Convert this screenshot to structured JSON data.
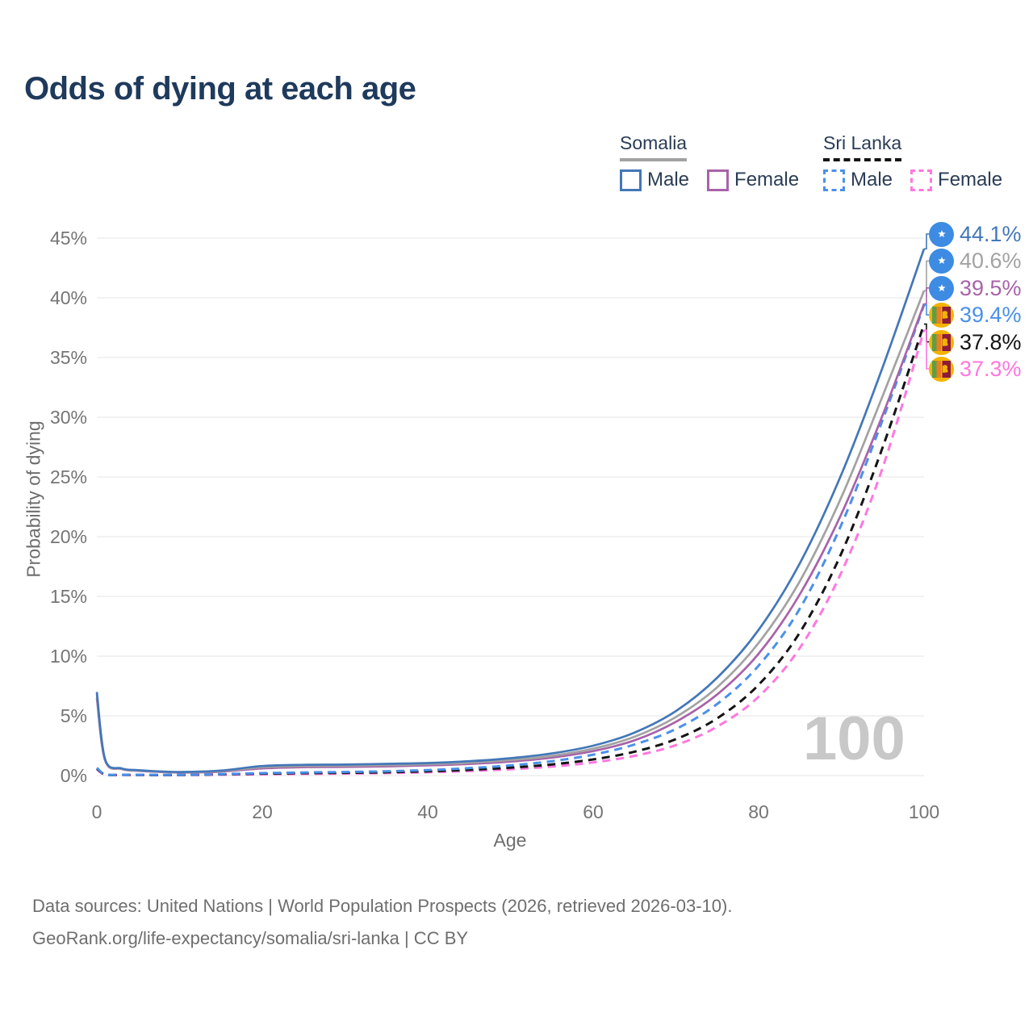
{
  "title": "Odds of dying at each age",
  "watermark": "100",
  "legend": {
    "groups": [
      {
        "name": "Somalia",
        "items": [
          "Male",
          "Female"
        ]
      },
      {
        "name": "Sri Lanka",
        "items": [
          "Male",
          "Female"
        ]
      }
    ]
  },
  "axes": {
    "y_label": "Probability of dying",
    "x_label": "Age",
    "y_ticks": [
      "45%",
      "40%",
      "35%",
      "30%",
      "25%",
      "20%",
      "15%",
      "10%",
      "5%",
      "0%"
    ],
    "x_ticks": [
      "0",
      "20",
      "40",
      "60",
      "80",
      "100"
    ]
  },
  "end_labels": [
    {
      "value": "44.1%",
      "flag": "somalia"
    },
    {
      "value": "40.6%",
      "flag": "somalia"
    },
    {
      "value": "39.5%",
      "flag": "somalia"
    },
    {
      "value": "39.4%",
      "flag": "sri-lanka"
    },
    {
      "value": "37.8%",
      "flag": "sri-lanka"
    },
    {
      "value": "37.3%",
      "flag": "sri-lanka"
    }
  ],
  "footer": {
    "line1": "Data sources: United Nations | World Population Prospects (2026, retrieved 2026-03-10).",
    "line2": "GeoRank.org/life-expectancy/somalia/sri-lanka | CC BY"
  },
  "colors": {
    "title": "#1e3a5c",
    "legend_text": "#2a3c55",
    "tick_text": "#757575",
    "gridline": "#ebebeb",
    "watermark": "#c8c8c8",
    "footer_text": "#6e6e6e",
    "somalia_flag_blue": "#3d8be2",
    "sri_lanka_gold": "#f3b301",
    "sri_lanka_maroon": "#8d1b3d"
  },
  "chart_data": {
    "type": "line",
    "title": "Odds of dying at each age",
    "xlabel": "Age",
    "ylabel": "Probability of dying",
    "xlim": [
      0,
      100
    ],
    "ylim": [
      0,
      45
    ],
    "y_unit": "%",
    "grid": true,
    "legend_position": "top-right",
    "x": [
      0,
      1,
      3,
      5,
      10,
      15,
      20,
      25,
      30,
      35,
      40,
      45,
      50,
      55,
      60,
      65,
      70,
      75,
      80,
      85,
      90,
      95,
      100
    ],
    "series": [
      {
        "name": "Somalia Male",
        "country": "Somalia",
        "sex": "male",
        "style": "solid",
        "color": "#4377b8",
        "end_label": "44.1%",
        "values": [
          7.0,
          1.35,
          0.6,
          0.45,
          0.3,
          0.42,
          0.8,
          0.9,
          0.92,
          0.98,
          1.05,
          1.2,
          1.45,
          1.85,
          2.5,
          3.6,
          5.4,
          8.2,
          12.2,
          17.8,
          25.2,
          34.2,
          44.1
        ]
      },
      {
        "name": "Somalia Both sexes",
        "country": "Somalia",
        "sex": "both",
        "style": "solid",
        "color": "#a2a2a2",
        "end_label": "40.6%",
        "values": [
          6.8,
          1.3,
          0.57,
          0.42,
          0.28,
          0.38,
          0.7,
          0.8,
          0.82,
          0.87,
          0.95,
          1.08,
          1.3,
          1.65,
          2.25,
          3.25,
          4.9,
          7.4,
          11.1,
          16.3,
          23.3,
          31.8,
          40.6
        ]
      },
      {
        "name": "Somalia Female",
        "country": "Somalia",
        "sex": "female",
        "style": "solid",
        "color": "#a863a8",
        "end_label": "39.5%",
        "values": [
          6.5,
          1.25,
          0.55,
          0.4,
          0.26,
          0.33,
          0.6,
          0.7,
          0.72,
          0.77,
          0.85,
          0.97,
          1.17,
          1.5,
          2.05,
          2.95,
          4.5,
          6.8,
          10.2,
          15.2,
          21.9,
          30.2,
          39.5
        ]
      },
      {
        "name": "Sri Lanka Male",
        "country": "Sri Lanka",
        "sex": "male",
        "style": "dashed",
        "color": "#4a90ea",
        "end_label": "39.4%",
        "values": [
          0.65,
          0.1,
          0.07,
          0.06,
          0.06,
          0.12,
          0.2,
          0.26,
          0.3,
          0.36,
          0.46,
          0.62,
          0.85,
          1.2,
          1.75,
          2.6,
          3.9,
          6.0,
          9.2,
          14.0,
          21.0,
          29.8,
          39.4
        ]
      },
      {
        "name": "Sri Lanka Both sexes",
        "country": "Sri Lanka",
        "sex": "both",
        "style": "dashed",
        "color": "#141414",
        "end_label": "37.8%",
        "values": [
          0.58,
          0.09,
          0.06,
          0.05,
          0.05,
          0.1,
          0.16,
          0.2,
          0.23,
          0.28,
          0.36,
          0.48,
          0.66,
          0.93,
          1.35,
          2.0,
          3.05,
          4.8,
          7.6,
          12.0,
          18.6,
          27.5,
          37.8
        ]
      },
      {
        "name": "Sri Lanka Female",
        "country": "Sri Lanka",
        "sex": "female",
        "style": "dashed",
        "color": "#ff77df",
        "end_label": "37.3%",
        "values": [
          0.52,
          0.08,
          0.05,
          0.04,
          0.04,
          0.07,
          0.11,
          0.14,
          0.17,
          0.21,
          0.28,
          0.38,
          0.53,
          0.75,
          1.1,
          1.65,
          2.55,
          4.1,
          6.6,
          10.7,
          17.0,
          25.8,
          37.3
        ]
      }
    ]
  }
}
